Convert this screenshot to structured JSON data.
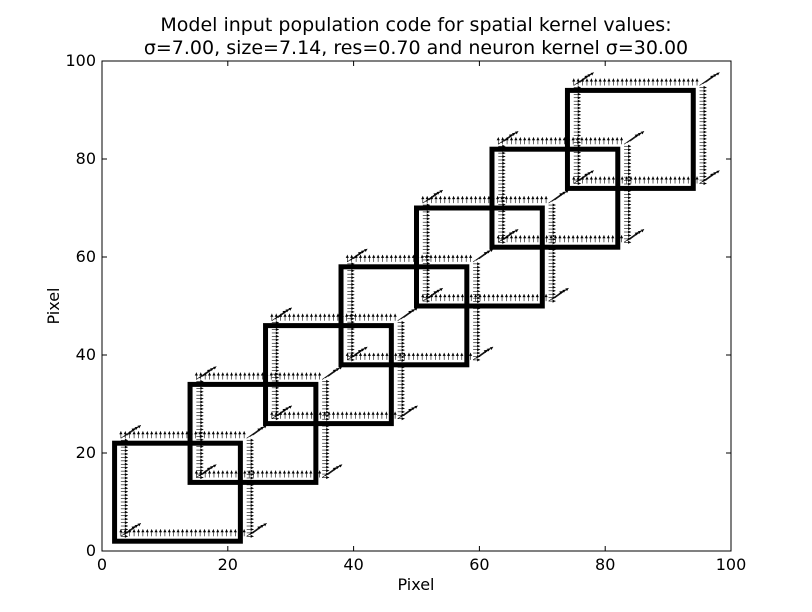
{
  "chart_data": {
    "type": "quiver",
    "title_lines": [
      "Model input population code for spatial kernel values:",
      "σ=7.00, size=7.14, res=0.70 and neuron kernel σ=30.00"
    ],
    "xlabel": "Pixel",
    "ylabel": "Pixel",
    "xlim": [
      0,
      100
    ],
    "ylim": [
      0,
      100
    ],
    "xticks": [
      "0",
      "20",
      "40",
      "60",
      "80",
      "100"
    ],
    "yticks": [
      "0",
      "20",
      "40",
      "60",
      "80",
      "100"
    ],
    "grid": false,
    "square_corners": [
      [
        2,
        2
      ],
      [
        14,
        14
      ],
      [
        26,
        26
      ],
      [
        38,
        38
      ],
      [
        50,
        50
      ],
      [
        62,
        62
      ],
      [
        74,
        74
      ]
    ],
    "square_size": 20,
    "arrow_offset": [
      5,
      5
    ],
    "arrow_span": 4
  }
}
